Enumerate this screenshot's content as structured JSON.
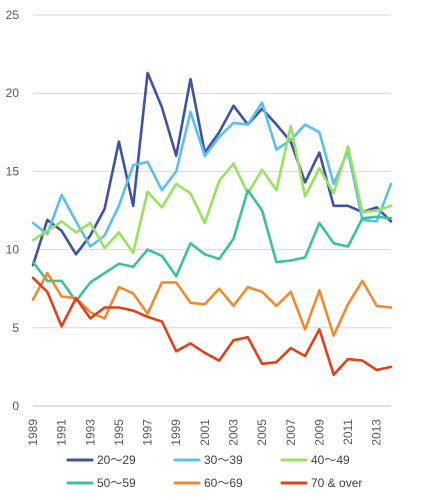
{
  "chart_data": {
    "type": "line",
    "x": [
      1989,
      1990,
      1991,
      1992,
      1993,
      1994,
      1995,
      1996,
      1997,
      1998,
      1999,
      2000,
      2001,
      2002,
      2003,
      2004,
      2005,
      2006,
      2007,
      2008,
      2009,
      2010,
      2011,
      2012,
      2013,
      2014
    ],
    "x_tick_labels": [
      "1989",
      "1991",
      "1993",
      "1995",
      "1997",
      "1999",
      "2001",
      "2003",
      "2005",
      "2007",
      "2009",
      "2011",
      "2013"
    ],
    "ylim": [
      0,
      25
    ],
    "y_ticks": [
      0,
      5,
      10,
      15,
      20,
      25
    ],
    "grid": true,
    "legend_position": "bottom",
    "series": [
      {
        "name": "20〜29",
        "color": "#4052A4",
        "values": [
          9.0,
          11.9,
          11.2,
          9.7,
          10.9,
          12.6,
          16.9,
          12.8,
          21.3,
          19.1,
          16.0,
          20.9,
          16.2,
          17.5,
          19.2,
          18.0,
          19.0,
          18.0,
          16.9,
          14.3,
          16.2,
          12.8,
          12.8,
          12.4,
          12.7,
          11.8
        ]
      },
      {
        "name": "30〜39",
        "color": "#5BC0EB",
        "values": [
          11.7,
          11.0,
          13.5,
          11.8,
          10.2,
          10.9,
          12.8,
          15.4,
          15.6,
          13.8,
          15.0,
          18.8,
          16.0,
          17.2,
          18.1,
          18.0,
          19.4,
          16.4,
          17.0,
          18.0,
          17.5,
          14.2,
          16.3,
          11.9,
          11.8,
          14.2
        ]
      },
      {
        "name": "40〜49",
        "color": "#9BE05F",
        "values": [
          10.6,
          11.2,
          11.8,
          11.1,
          11.7,
          10.1,
          11.1,
          9.8,
          13.7,
          12.7,
          14.2,
          13.6,
          11.7,
          14.4,
          15.5,
          13.6,
          15.1,
          13.8,
          17.9,
          13.4,
          15.2,
          13.6,
          16.6,
          12.4,
          12.5,
          12.8
        ]
      },
      {
        "name": "50〜59",
        "color": "#3CC19C",
        "values": [
          9.2,
          8.0,
          8.0,
          6.7,
          7.9,
          8.5,
          9.1,
          8.9,
          10.0,
          9.6,
          8.3,
          10.4,
          9.7,
          9.4,
          10.7,
          13.8,
          12.5,
          9.2,
          9.3,
          9.5,
          11.7,
          10.4,
          10.2,
          12.0,
          12.1,
          12.0
        ]
      },
      {
        "name": "60〜69",
        "color": "#F08A2E",
        "values": [
          6.8,
          8.5,
          7.0,
          6.9,
          6.0,
          5.6,
          7.6,
          7.2,
          5.9,
          7.9,
          7.9,
          6.6,
          6.5,
          7.5,
          6.4,
          7.6,
          7.3,
          6.4,
          7.3,
          4.9,
          7.4,
          4.5,
          6.5,
          8.0,
          6.4,
          6.3
        ]
      },
      {
        "name": "70 & over",
        "color": "#E0401A",
        "values": [
          8.2,
          7.3,
          5.1,
          6.9,
          5.6,
          6.3,
          6.3,
          6.1,
          5.7,
          5.4,
          3.5,
          4.0,
          3.4,
          2.9,
          4.2,
          4.4,
          2.7,
          2.8,
          3.7,
          3.2,
          4.9,
          2.0,
          3.0,
          2.9,
          2.3,
          2.5
        ]
      }
    ]
  }
}
